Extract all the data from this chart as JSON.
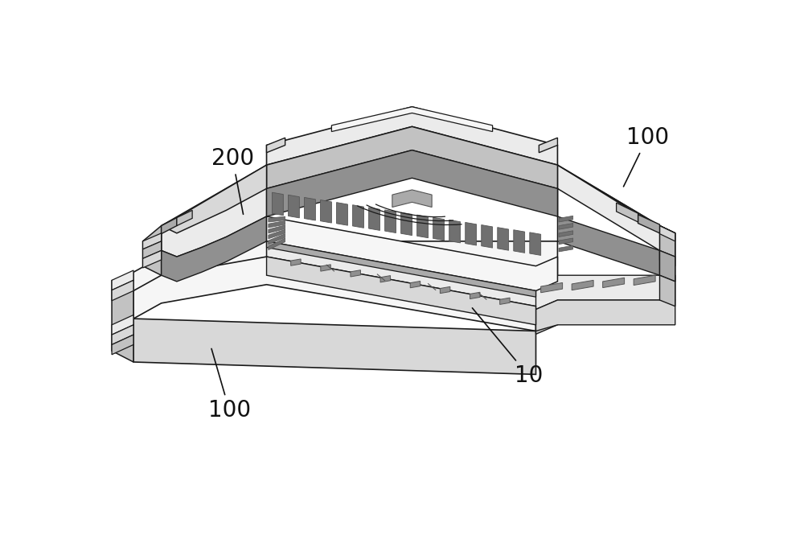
{
  "background_color": "#ffffff",
  "label_200": "200",
  "label_100_top": "100",
  "label_100_bottom": "100",
  "label_10": "10",
  "label_fontsize": 20,
  "lc": "#1a1a1a",
  "lc2": "#555555",
  "f_white": "#ffffff",
  "f_vl": "#f6f6f6",
  "f_l": "#ebebeb",
  "f_lm": "#d8d8d8",
  "f_m": "#c2c2c2",
  "f_dm": "#aaaaaa",
  "f_d": "#909090",
  "f_vd": "#707070"
}
